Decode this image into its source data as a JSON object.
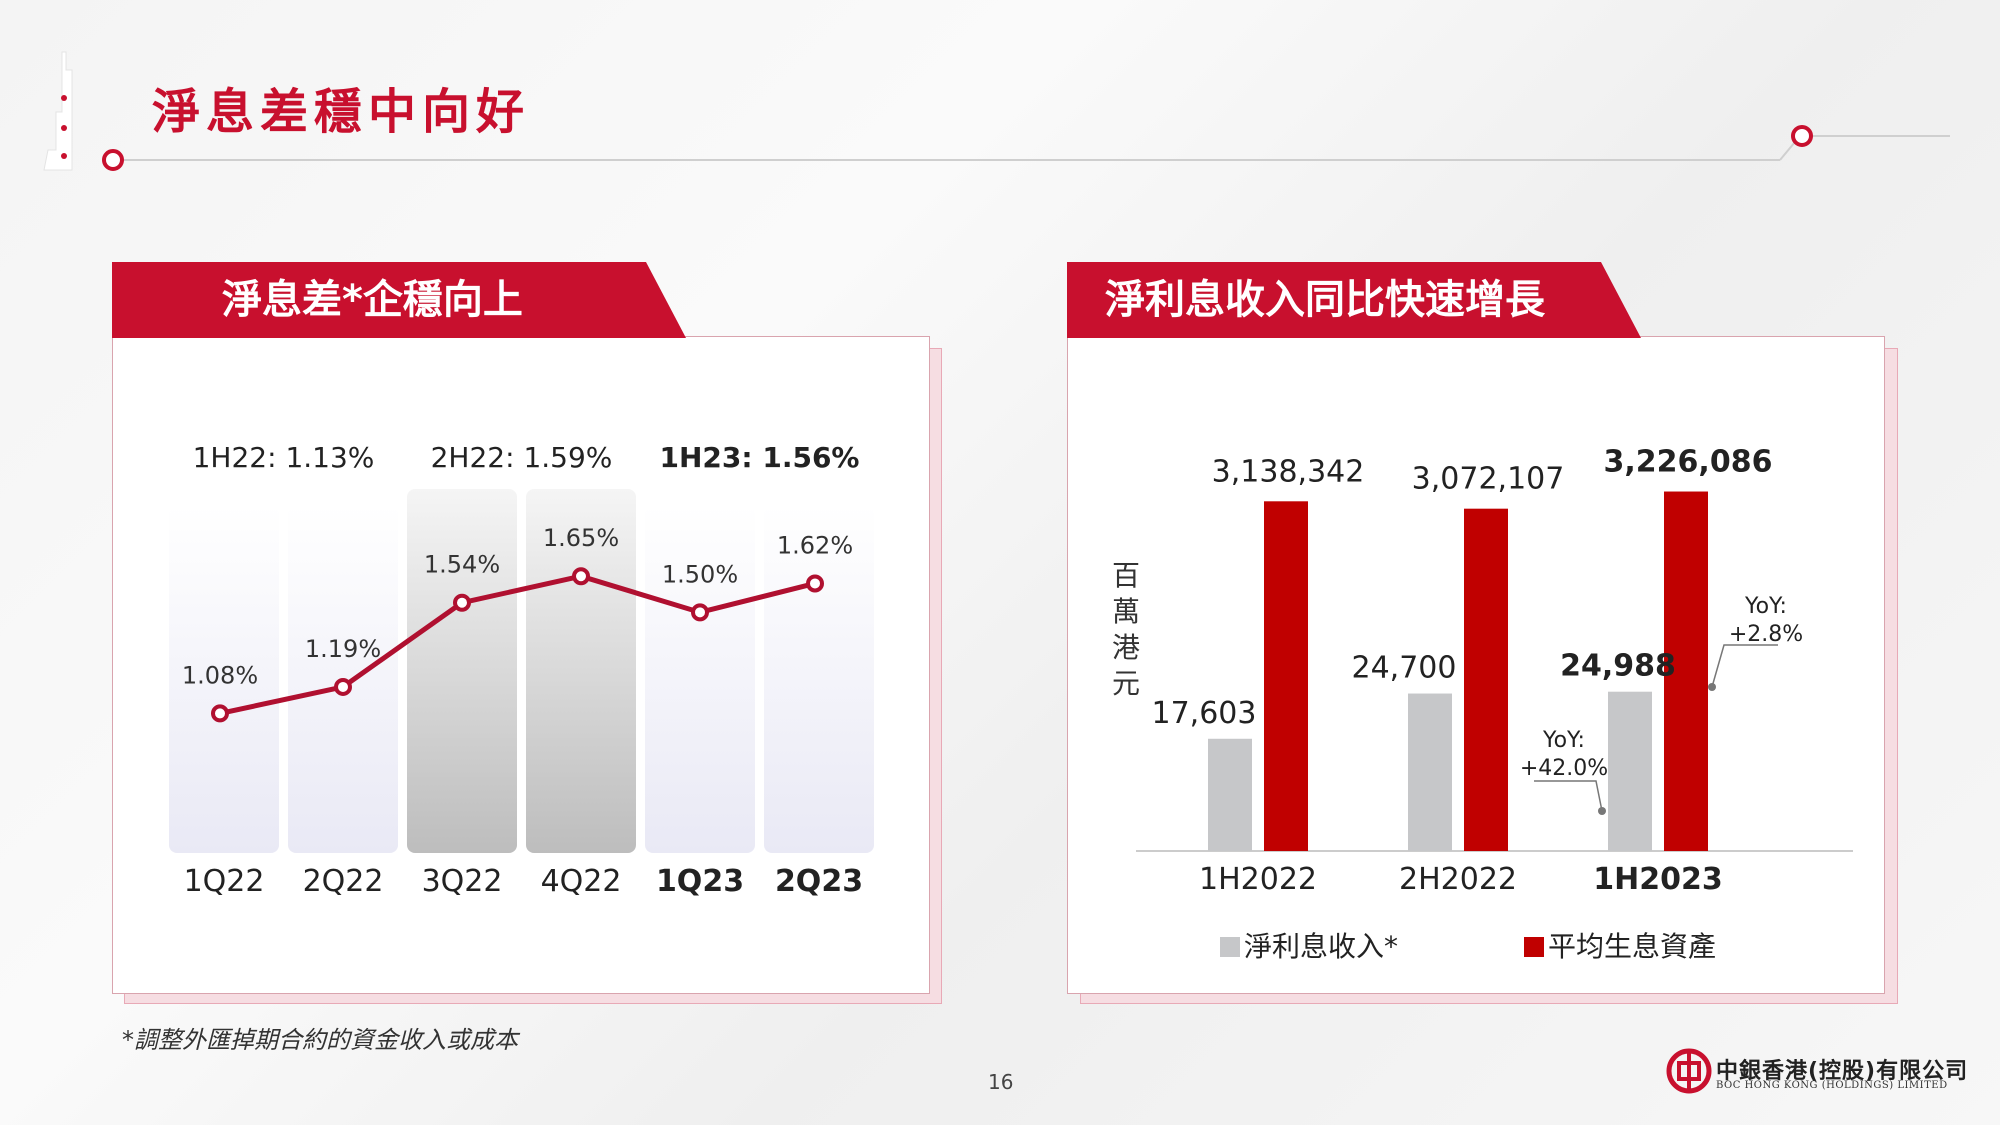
{
  "page": {
    "title": "淨息差穩中向好",
    "footnote": "*調整外匯掉期合約的資金收入或成本",
    "page_number": "16",
    "logo_cn": "中銀香港(控股)有限公司",
    "logo_en": "BOC HONG KONG (HOLDINGS) LIMITED",
    "brand_color": "#c8102e"
  },
  "left_panel": {
    "title": "淨息差*企穩向上"
  },
  "right_panel": {
    "title": "淨利息收入同比快速增長"
  },
  "chart_data": [
    {
      "type": "line",
      "title": "淨息差*企穩向上",
      "categories": [
        "1Q22",
        "2Q22",
        "3Q22",
        "4Q22",
        "1Q23",
        "2Q23"
      ],
      "category_bold": [
        false,
        false,
        false,
        false,
        true,
        true
      ],
      "series": [
        {
          "values": [
            1.08,
            1.19,
            1.54,
            1.65,
            1.5,
            1.62
          ],
          "labels": [
            "1.08%",
            "1.19%",
            "1.54%",
            "1.65%",
            "1.50%",
            "1.62%"
          ],
          "color": "#b01030"
        }
      ],
      "half_year_labels": [
        {
          "text": "1H22: 1.13%",
          "bold": false
        },
        {
          "text": "2H22: 1.59%",
          "bold": false
        },
        {
          "text": "1H23: 1.56%",
          "bold": true
        }
      ],
      "highlighted_columns": [
        "3Q22",
        "4Q22"
      ],
      "ylim": [
        0.5,
        2.0
      ],
      "grid": false
    },
    {
      "type": "bar",
      "title": "淨利息收入同比快速增長",
      "categories": [
        "1H2022",
        "2H2022",
        "1H2023"
      ],
      "category_bold": [
        false,
        false,
        true
      ],
      "ylabel": "百萬港元",
      "series": [
        {
          "name": "淨利息收入*",
          "color": "#c6c7c9",
          "values": [
            17603,
            24700,
            24988
          ],
          "labels": [
            "17,603",
            "24,700",
            "24,988"
          ]
        },
        {
          "name": "平均生息資產",
          "color": "#c00000",
          "values": [
            3138342,
            3072107,
            3226086
          ],
          "labels": [
            "3,138,342",
            "3,072,107",
            "3,226,086"
          ]
        }
      ],
      "annotations": [
        {
          "text_line1": "YoY:",
          "text_line2": "+42.0%",
          "target": "淨利息收入* 1H2023"
        },
        {
          "text_line1": "YoY:",
          "text_line2": "+2.8%",
          "target": "平均生息資產 1H2023"
        }
      ],
      "legend_position": "bottom",
      "grid": false
    }
  ]
}
